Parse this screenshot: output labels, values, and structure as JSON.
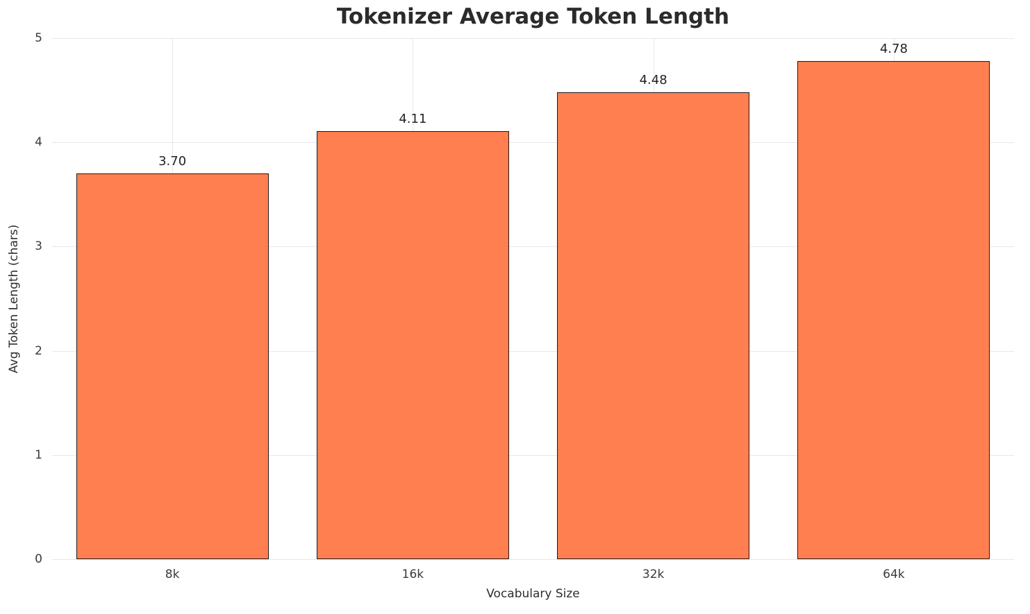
{
  "chart_data": {
    "type": "bar",
    "title": "Tokenizer Average Token Length",
    "xlabel": "Vocabulary Size",
    "ylabel": "Avg Token Length (chars)",
    "categories": [
      "8k",
      "16k",
      "32k",
      "64k"
    ],
    "values": [
      3.7,
      4.11,
      4.48,
      4.78
    ],
    "value_labels": [
      "3.70",
      "4.11",
      "4.48",
      "4.78"
    ],
    "ylim": [
      0,
      5
    ],
    "yticks": [
      0,
      1,
      2,
      3,
      4,
      5
    ],
    "grid": true,
    "legend": "none",
    "bar_color": "#FF7F50",
    "bar_edge_color": "#1a1a1a",
    "background_color": "#ffffff",
    "grid_color": "#e8e8ee",
    "title_color": "#2b2b2b",
    "bar_width_fraction": 0.8
  }
}
